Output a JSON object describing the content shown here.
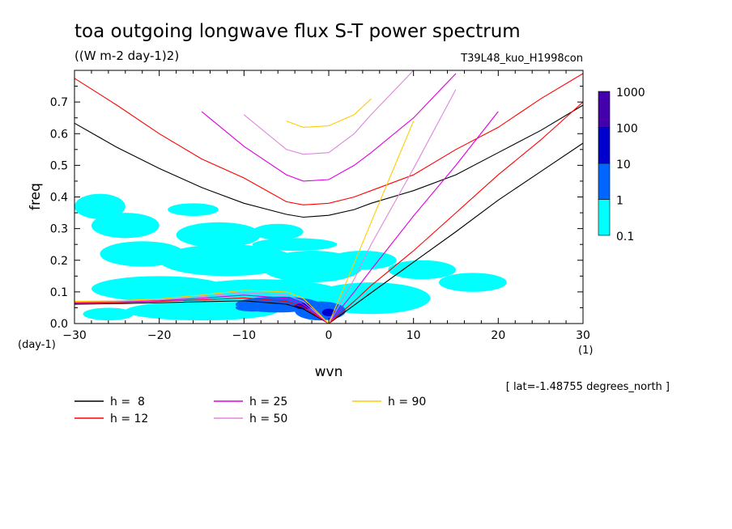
{
  "chart_data": {
    "type": "heatmap",
    "title": "toa outgoing longwave flux S-T power spectrum",
    "subtitle": "((W m-2 day-1)2)",
    "dataset_label": "T39L48_kuo_H1998con",
    "xlabel": "wvn",
    "ylabel": "freq",
    "x_unit": "(1)",
    "y_unit": "(day-1)",
    "xlim": [
      -30,
      30
    ],
    "ylim": [
      0,
      0.8
    ],
    "x_ticks": [
      -30,
      -20,
      -10,
      0,
      10,
      20,
      30
    ],
    "y_ticks": [
      0.0,
      0.1,
      0.2,
      0.3,
      0.4,
      0.5,
      0.6,
      0.7
    ],
    "y_tick_labels": [
      "0.0",
      "0.1",
      "0.2",
      "0.3",
      "0.4",
      "0.5",
      "0.6",
      "0.7"
    ],
    "annotation": "[ lat=-1.48755 degrees_north ]",
    "colorbar": {
      "labels": [
        "1000",
        "100",
        "10",
        "1",
        "0.1"
      ],
      "levels": [
        0.1,
        1,
        10,
        100,
        1000
      ],
      "colors": [
        "#00ffff",
        "#0066ff",
        "#0000cc",
        "#4400aa"
      ]
    },
    "heatmap_blobs": [
      {
        "x": -27,
        "y": 0.37,
        "rx": 3,
        "ry": 0.04,
        "level": 0
      },
      {
        "x": -24,
        "y": 0.31,
        "rx": 4,
        "ry": 0.04,
        "level": 0
      },
      {
        "x": -16,
        "y": 0.36,
        "rx": 3,
        "ry": 0.02,
        "level": 0
      },
      {
        "x": -13,
        "y": 0.28,
        "rx": 5,
        "ry": 0.04,
        "level": 0
      },
      {
        "x": -6,
        "y": 0.29,
        "rx": 3,
        "ry": 0.025,
        "level": 0
      },
      {
        "x": -4,
        "y": 0.25,
        "rx": 5,
        "ry": 0.02,
        "level": 0
      },
      {
        "x": -22,
        "y": 0.22,
        "rx": 5,
        "ry": 0.04,
        "level": 0
      },
      {
        "x": -12,
        "y": 0.2,
        "rx": 8,
        "ry": 0.05,
        "level": 0
      },
      {
        "x": -2,
        "y": 0.18,
        "rx": 6,
        "ry": 0.05,
        "level": 0
      },
      {
        "x": 4,
        "y": 0.2,
        "rx": 4,
        "ry": 0.03,
        "level": 0
      },
      {
        "x": 11,
        "y": 0.17,
        "rx": 4,
        "ry": 0.03,
        "level": 0
      },
      {
        "x": 17,
        "y": 0.13,
        "rx": 4,
        "ry": 0.03,
        "level": 0
      },
      {
        "x": -20,
        "y": 0.11,
        "rx": 8,
        "ry": 0.04,
        "level": 0
      },
      {
        "x": -8,
        "y": 0.09,
        "rx": 10,
        "ry": 0.05,
        "level": 0
      },
      {
        "x": 5,
        "y": 0.08,
        "rx": 7,
        "ry": 0.05,
        "level": 0
      },
      {
        "x": -15,
        "y": 0.04,
        "rx": 9,
        "ry": 0.03,
        "level": 0
      },
      {
        "x": -26,
        "y": 0.03,
        "rx": 3,
        "ry": 0.02,
        "level": 0
      },
      {
        "x": -6,
        "y": 0.06,
        "rx": 5,
        "ry": 0.025,
        "level": 1
      },
      {
        "x": -1,
        "y": 0.04,
        "rx": 3,
        "ry": 0.03,
        "level": 1
      },
      {
        "x": -9,
        "y": 0.05,
        "rx": 2,
        "ry": 0.012,
        "level": 1
      },
      {
        "x": -3,
        "y": 0.055,
        "rx": 1,
        "ry": 0.01,
        "level": 2
      },
      {
        "x": 0,
        "y": 0.035,
        "rx": 0.8,
        "ry": 0.012,
        "level": 2
      }
    ],
    "dispersion_curves": {
      "x": [
        -30,
        -25,
        -20,
        -15,
        -10,
        -5,
        -3,
        0,
        3,
        5,
        10,
        15,
        20,
        25,
        30
      ],
      "series": [
        {
          "name": "h =  8",
          "color": "#000000",
          "rossby": [
            0.061,
            0.063,
            0.066,
            0.069,
            0.072,
            0.061,
            0.046,
            0.0,
            null,
            null,
            null,
            null,
            null,
            null,
            null
          ],
          "kelvin": [
            null,
            null,
            null,
            null,
            null,
            null,
            null,
            0.0,
            0.058,
            0.097,
            0.194,
            0.29,
            0.39,
            0.48,
            0.57
          ],
          "ig": [
            0.633,
            0.557,
            0.49,
            0.43,
            0.38,
            0.345,
            0.336,
            0.342,
            0.36,
            0.38,
            0.42,
            0.47,
            0.54,
            0.61,
            0.69
          ]
        },
        {
          "name": "h = 12",
          "color": "#ff0000",
          "rossby": [
            0.064,
            0.066,
            0.07,
            0.075,
            0.081,
            0.07,
            0.052,
            0.0,
            null,
            null,
            null,
            null,
            null,
            null,
            null
          ],
          "kelvin": [
            null,
            null,
            null,
            null,
            null,
            null,
            null,
            0.0,
            0.07,
            0.12,
            0.23,
            0.35,
            0.47,
            0.58,
            0.7
          ],
          "ig": [
            0.775,
            0.69,
            0.6,
            0.52,
            0.46,
            0.385,
            0.375,
            0.38,
            0.4,
            0.42,
            0.47,
            0.55,
            0.62,
            0.71,
            0.79
          ]
        },
        {
          "name": "h = 25",
          "color": "#dd00dd",
          "rossby": [
            0.066,
            0.068,
            0.072,
            0.08,
            0.09,
            0.08,
            0.06,
            0.0,
            null,
            null,
            null,
            null,
            null,
            null,
            null
          ],
          "kelvin": [
            null,
            null,
            null,
            null,
            null,
            null,
            null,
            0.0,
            0.1,
            0.17,
            0.34,
            0.5,
            0.67,
            null,
            null
          ],
          "ig": [
            null,
            null,
            null,
            0.67,
            0.56,
            0.47,
            0.45,
            0.455,
            0.5,
            0.54,
            0.65,
            0.79,
            null,
            null,
            null
          ]
        },
        {
          "name": "h = 50",
          "color": "#dd88dd",
          "rossby": [
            0.068,
            0.07,
            0.075,
            0.085,
            0.098,
            0.09,
            0.07,
            0.0,
            null,
            null,
            null,
            null,
            null,
            null,
            null
          ],
          "kelvin": [
            null,
            null,
            null,
            null,
            null,
            null,
            null,
            0.0,
            0.14,
            0.25,
            0.49,
            0.74,
            null,
            null,
            null
          ],
          "ig": [
            null,
            null,
            null,
            null,
            0.66,
            0.55,
            0.535,
            0.54,
            0.6,
            0.66,
            0.8,
            null,
            null,
            null,
            null
          ]
        },
        {
          "name": "h = 90",
          "color": "#ffcc00",
          "rossby": [
            0.07,
            0.072,
            0.078,
            0.09,
            0.105,
            0.1,
            0.08,
            0.0,
            null,
            null,
            null,
            null,
            null,
            null,
            null
          ],
          "kelvin": [
            null,
            null,
            null,
            null,
            null,
            null,
            null,
            0.0,
            0.19,
            0.32,
            0.64,
            null,
            null,
            null,
            null
          ],
          "ig": [
            null,
            null,
            null,
            null,
            null,
            0.64,
            0.62,
            0.625,
            0.66,
            0.71,
            null,
            null,
            null,
            null,
            null
          ]
        }
      ]
    },
    "legend": {
      "placement": "bottom-left",
      "entries": [
        {
          "label": "h =  8",
          "color": "#000000"
        },
        {
          "label": "h = 12",
          "color": "#ff0000"
        },
        {
          "label": "h = 25",
          "color": "#dd00dd"
        },
        {
          "label": "h = 50",
          "color": "#dd88dd"
        },
        {
          "label": "h = 90",
          "color": "#ffcc00"
        }
      ]
    }
  }
}
